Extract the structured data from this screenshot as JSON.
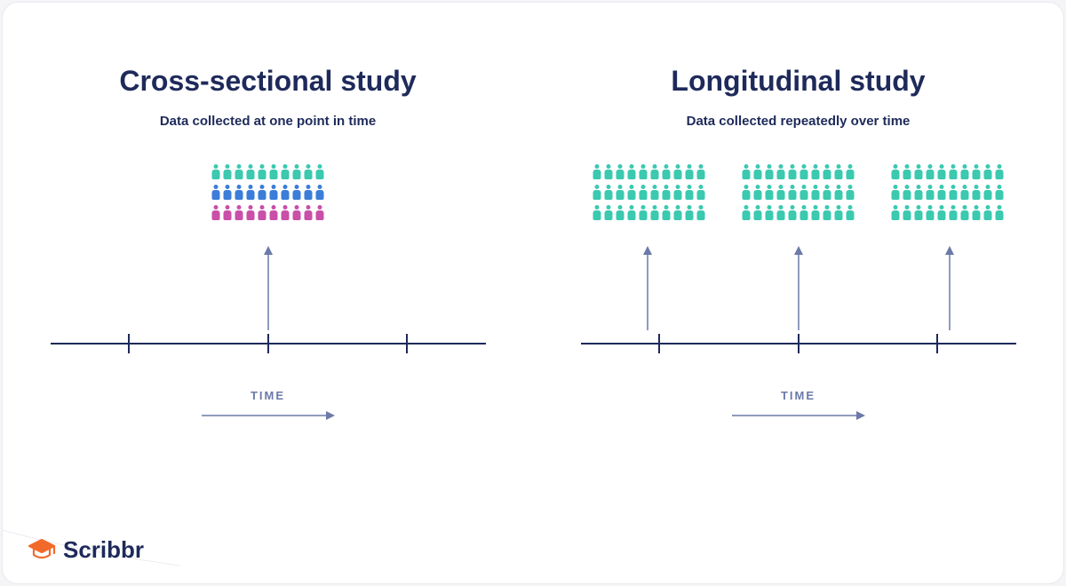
{
  "card": {
    "background_color": "#ffffff",
    "border_color": "#e8e8ee",
    "border_radius": 18
  },
  "colors": {
    "text_primary": "#1e2a5a",
    "arrow": "#6b7aa8",
    "teal": "#3bc9b0",
    "blue": "#3b7dd8",
    "magenta": "#c94fa8",
    "logo_orange": "#f26a2a"
  },
  "left": {
    "title": "Cross-sectional study",
    "subtitle": "Data collected at one point in time",
    "groups": [
      {
        "rows": [
          {
            "count": 10,
            "color": "#3bc9b0"
          },
          {
            "count": 10,
            "color": "#3b7dd8"
          },
          {
            "count": 10,
            "color": "#c94fa8"
          }
        ]
      }
    ],
    "arrow_positions_pct": [
      50
    ],
    "tick_positions_pct": [
      18,
      50,
      82
    ],
    "vertical_arrow_height": 95,
    "time_label": "TIME"
  },
  "right": {
    "title": "Longitudinal study",
    "subtitle": "Data collected repeatedly over time",
    "groups": [
      {
        "rows": [
          {
            "count": 10,
            "color": "#3bc9b0"
          },
          {
            "count": 10,
            "color": "#3bc9b0"
          },
          {
            "count": 10,
            "color": "#3bc9b0"
          }
        ]
      },
      {
        "rows": [
          {
            "count": 10,
            "color": "#3bc9b0"
          },
          {
            "count": 10,
            "color": "#3bc9b0"
          },
          {
            "count": 10,
            "color": "#3bc9b0"
          }
        ]
      },
      {
        "rows": [
          {
            "count": 10,
            "color": "#3bc9b0"
          },
          {
            "count": 10,
            "color": "#3bc9b0"
          },
          {
            "count": 10,
            "color": "#3bc9b0"
          }
        ]
      }
    ],
    "arrow_positions_pct": [
      18,
      50,
      82
    ],
    "tick_positions_pct": [
      18,
      50,
      82
    ],
    "vertical_arrow_height": 95,
    "time_label": "TIME"
  },
  "time_arrow": {
    "width": 150,
    "color": "#6b7aa8"
  },
  "logo": {
    "text": "Scribbr",
    "icon_color": "#f26a2a"
  }
}
